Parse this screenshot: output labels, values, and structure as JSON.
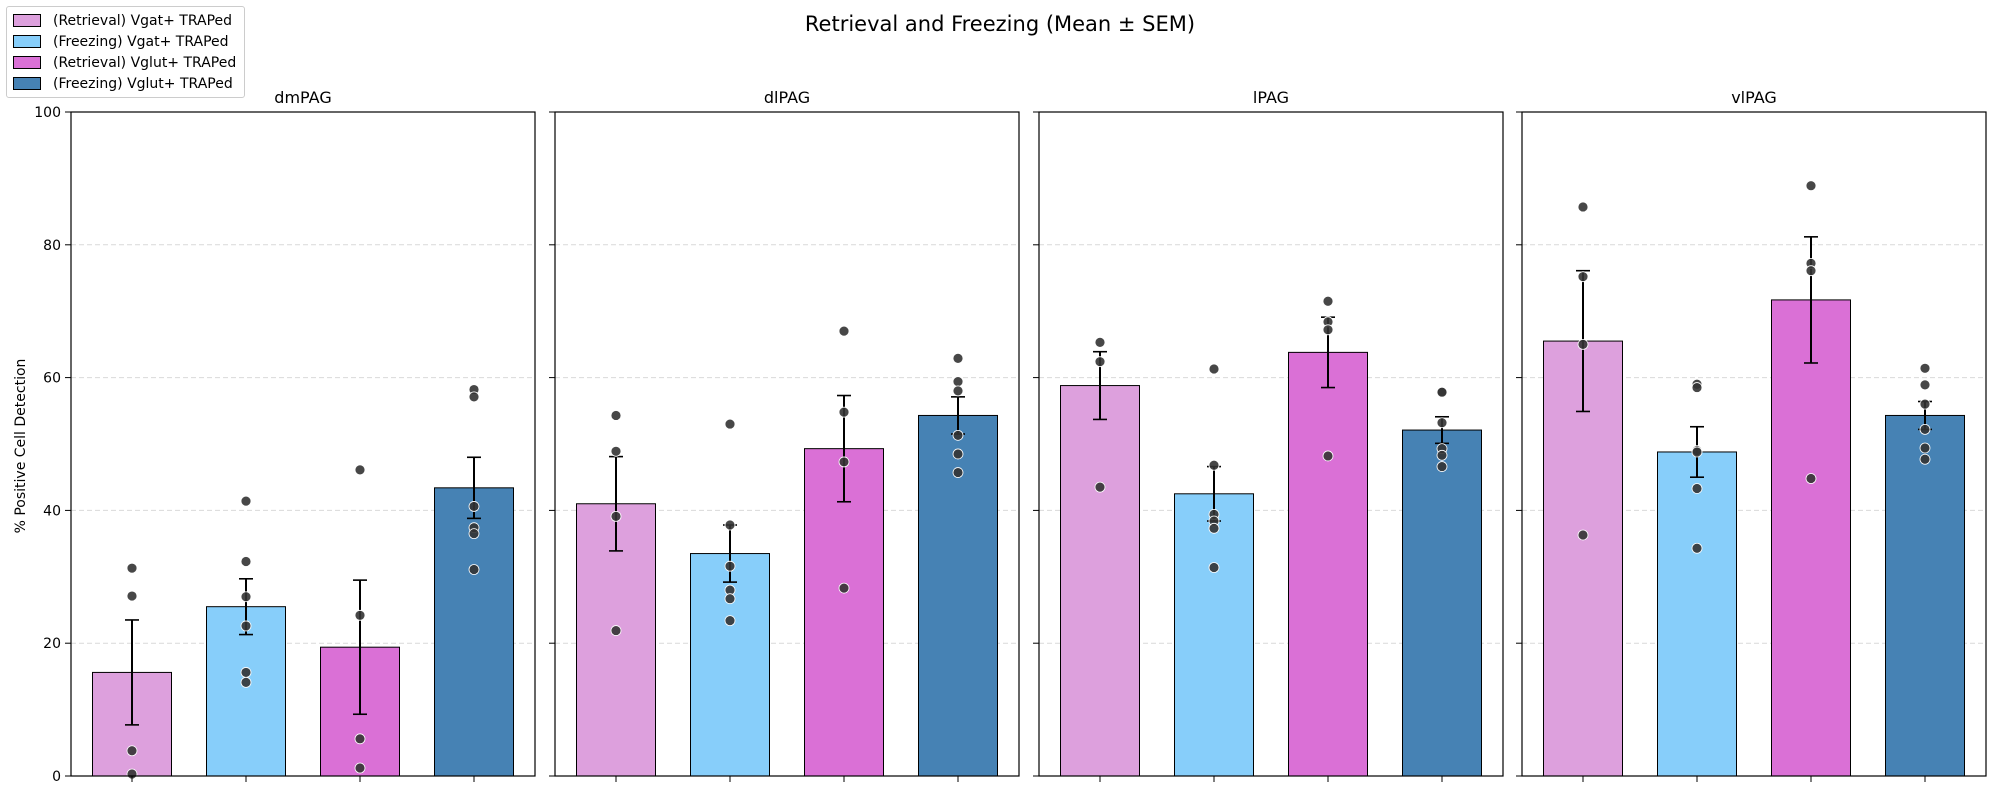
{
  "chart_data": {
    "type": "bar",
    "title": "Retrieval and Freezing (Mean ± SEM)",
    "ylabel": "% Positive Cell Detection",
    "ylim": [
      0,
      100
    ],
    "yticks": [
      "0",
      "20",
      "40",
      "60",
      "80",
      "100"
    ],
    "grid": "y, dashed",
    "legend_position": "top-left",
    "series": [
      {
        "name": "(Retrieval) Vgat+ TRAPed",
        "color": "#DDA0DD"
      },
      {
        "name": "(Freezing) Vgat+ TRAPed",
        "color": "#87CEFA"
      },
      {
        "name": "(Retrieval) Vglut+ TRAPed",
        "color": "#DA70D6"
      },
      {
        "name": "(Freezing) Vglut+ TRAPed",
        "color": "#4682B4"
      }
    ],
    "panels": [
      {
        "title": "dmPAG",
        "bars": [
          {
            "mean": 15.6,
            "sem": 7.9,
            "points": [
              31.3,
              27.1,
              3.8,
              0.3
            ]
          },
          {
            "mean": 25.5,
            "sem": 4.2,
            "points": [
              41.4,
              32.3,
              27.0,
              22.6,
              15.6,
              14.1
            ]
          },
          {
            "mean": 19.4,
            "sem": 10.1,
            "points": [
              46.1,
              24.2,
              5.6,
              1.2
            ]
          },
          {
            "mean": 43.4,
            "sem": 4.6,
            "points": [
              58.2,
              57.1,
              40.6,
              37.4,
              36.5,
              31.1
            ]
          }
        ]
      },
      {
        "title": "dlPAG",
        "bars": [
          {
            "mean": 41.0,
            "sem": 7.1,
            "points": [
              54.3,
              48.9,
              39.1,
              21.9
            ]
          },
          {
            "mean": 33.5,
            "sem": 4.3,
            "points": [
              53.0,
              37.8,
              31.6,
              28.0,
              26.7,
              23.4
            ]
          },
          {
            "mean": 49.3,
            "sem": 8.0,
            "points": [
              67.0,
              54.8,
              47.3,
              28.3
            ]
          },
          {
            "mean": 54.3,
            "sem": 2.8,
            "points": [
              62.9,
              59.4,
              58.0,
              51.3,
              48.5,
              45.7
            ]
          }
        ]
      },
      {
        "title": "lPAG",
        "bars": [
          {
            "mean": 58.8,
            "sem": 5.1,
            "points": [
              65.3,
              62.4,
              43.5
            ]
          },
          {
            "mean": 42.5,
            "sem": 4.1,
            "points": [
              61.3,
              46.8,
              39.4,
              38.4,
              37.3,
              31.4
            ]
          },
          {
            "mean": 63.8,
            "sem": 5.3,
            "points": [
              71.5,
              68.4,
              67.2,
              48.2
            ]
          },
          {
            "mean": 52.1,
            "sem": 2.0,
            "points": [
              57.9,
              57.8,
              53.2,
              49.3,
              48.3,
              46.6
            ]
          }
        ]
      },
      {
        "title": "vlPAG",
        "bars": [
          {
            "mean": 65.5,
            "sem": 10.6,
            "points": [
              85.7,
              75.2,
              65.0,
              36.3
            ]
          },
          {
            "mean": 48.8,
            "sem": 3.8,
            "points": [
              59.0,
              58.5,
              49.0,
              48.8,
              43.3,
              34.3
            ]
          },
          {
            "mean": 71.7,
            "sem": 9.5,
            "points": [
              88.9,
              77.2,
              76.1,
              44.8
            ]
          },
          {
            "mean": 54.3,
            "sem": 2.1,
            "points": [
              61.4,
              58.9,
              56.0,
              52.2,
              49.4,
              47.7
            ]
          }
        ]
      }
    ]
  }
}
